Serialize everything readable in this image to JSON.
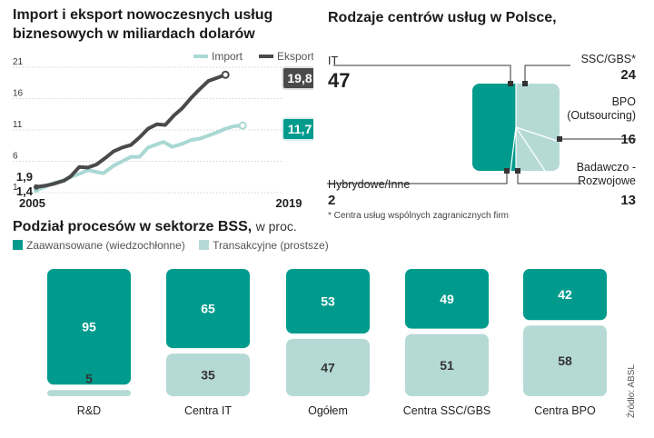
{
  "colors": {
    "advanced": "#009b8d",
    "transactional": "#b5dad6",
    "export": "#4a4a4a",
    "import": "#a9d8d3",
    "pill_light": "#e9f3f2"
  },
  "chart_data": [
    {
      "type": "line",
      "title": "Import i eksport nowoczesnych usług biznesowych w miliardach dolarów",
      "x": [
        2005,
        2006,
        2007,
        2008,
        2009,
        2010,
        2011,
        2012,
        2013,
        2014,
        2015,
        2016,
        2017,
        2018,
        2019
      ],
      "x_tick_labels": [
        "2005",
        "2019"
      ],
      "y_ticks": [
        1,
        6,
        11,
        16,
        21
      ],
      "ylim": [
        1,
        21
      ],
      "series": [
        {
          "name": "Import",
          "color": "#a9d8d3",
          "points": [
            [
              2005,
              1.4
            ],
            [
              2005.5,
              1.9
            ],
            [
              2006,
              2.5
            ],
            [
              2006.6,
              3.0
            ],
            [
              2007,
              3.5
            ],
            [
              2007.5,
              4.0
            ],
            [
              2008,
              4.6
            ],
            [
              2008.5,
              4.3
            ],
            [
              2008.9,
              4.1
            ],
            [
              2009.5,
              5.3
            ],
            [
              2010,
              6.0
            ],
            [
              2010.5,
              6.7
            ],
            [
              2011,
              6.7
            ],
            [
              2011.5,
              8.2
            ],
            [
              2012,
              8.7
            ],
            [
              2012.4,
              9.1
            ],
            [
              2012.9,
              8.3
            ],
            [
              2013.5,
              8.8
            ],
            [
              2014,
              9.4
            ],
            [
              2014.5,
              9.6
            ],
            [
              2015,
              10.1
            ],
            [
              2015.5,
              10.6
            ],
            [
              2016,
              11.2
            ],
            [
              2016.5,
              11.6
            ],
            [
              2017,
              11.7
            ]
          ]
        },
        {
          "name": "Eksport",
          "color": "#4a4a4a",
          "points": [
            [
              2005,
              1.9
            ],
            [
              2005.5,
              2.1
            ],
            [
              2006,
              2.4
            ],
            [
              2006.6,
              2.9
            ],
            [
              2007,
              3.6
            ],
            [
              2007.5,
              5.1
            ],
            [
              2008,
              5.0
            ],
            [
              2008.5,
              5.5
            ],
            [
              2009,
              6.5
            ],
            [
              2009.5,
              7.6
            ],
            [
              2010,
              8.2
            ],
            [
              2010.5,
              8.6
            ],
            [
              2011,
              9.8
            ],
            [
              2011.5,
              11.2
            ],
            [
              2012,
              11.9
            ],
            [
              2012.5,
              11.8
            ],
            [
              2013,
              13.3
            ],
            [
              2013.5,
              14.5
            ],
            [
              2014,
              16.1
            ],
            [
              2014.5,
              17.5
            ],
            [
              2015,
              18.8
            ],
            [
              2015.5,
              19.3
            ],
            [
              2016,
              19.8
            ]
          ]
        }
      ],
      "start_labels": [
        "1,9",
        "1,4"
      ],
      "end_labels": {
        "export": "19,8",
        "import": "11,7"
      }
    },
    {
      "type": "bar",
      "title": "Rodzaje centrów usług w Polsce,",
      "note": "* Centra usług wspólnych zagranicznych firm",
      "categories": [
        {
          "name": "IT",
          "value": "47"
        },
        {
          "name": "SSC/GBS*",
          "value": "24"
        },
        {
          "name": "BPO (Outsourcing)",
          "value": "16"
        },
        {
          "name": "Badawczo -Rozwojowe",
          "value": "13"
        },
        {
          "name": "Hybrydowe/Inne",
          "value": "2"
        }
      ]
    },
    {
      "type": "bar",
      "title": "Podział procesów w sektorze  BSS,",
      "title_unit": "w proc.",
      "legend": [
        "Zaawansowane (wiedzochłonne)",
        "Transakcyjne (prostsze)"
      ],
      "categories": [
        "R&D",
        "Centra IT",
        "Ogółem",
        "Centra SSC/GBS",
        "Centra BPO"
      ],
      "series": [
        {
          "name": "Zaawansowane (wiedzochłonne)",
          "values": [
            95,
            65,
            53,
            49,
            42
          ]
        },
        {
          "name": "Transakcyjne (prostsze)",
          "values": [
            5,
            35,
            47,
            51,
            58
          ]
        }
      ]
    }
  ],
  "line_legend": {
    "import": "Import",
    "export": "Eksport"
  },
  "line_axis": {
    "start": "2005",
    "end": "2019"
  },
  "source": "Źródło: ABSL"
}
